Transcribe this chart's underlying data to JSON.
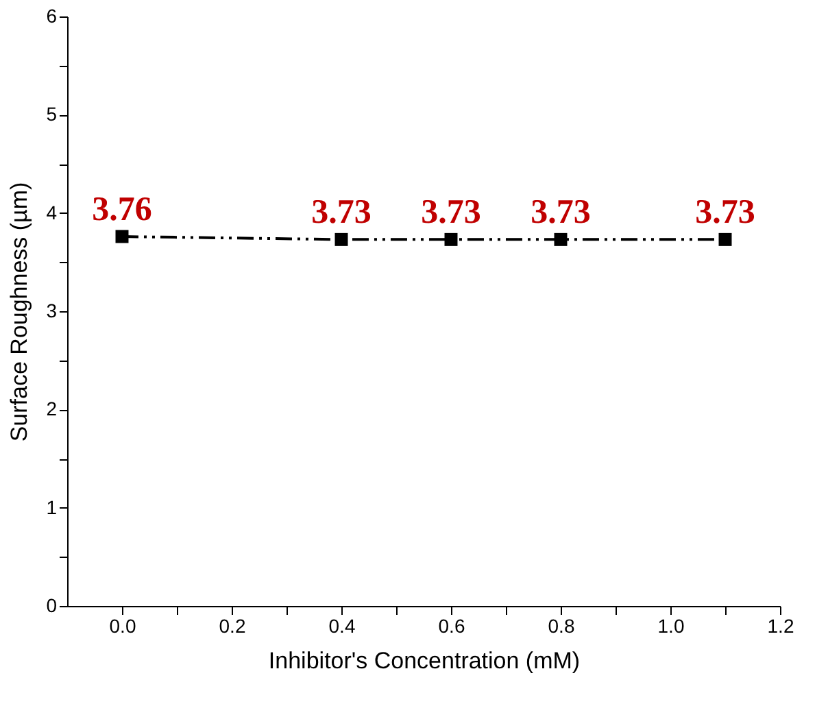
{
  "chart_data": {
    "type": "line",
    "xlabel": "Inhibitor's Concentration (mM)",
    "ylabel": "Surface Roughness (µm)",
    "x": [
      0.0,
      0.4,
      0.6,
      0.8,
      1.1
    ],
    "series": [
      {
        "color": "#000000",
        "values": [
          3.76,
          3.73,
          3.73,
          3.73,
          3.73
        ]
      }
    ],
    "xlim": [
      -0.1,
      1.2
    ],
    "xticks": [
      "0.0",
      0.2,
      0.4,
      0.6,
      0.8,
      "1.0",
      1.2,
      {
        "value": 0.1,
        "label": null
      },
      {
        "value": 0.3,
        "label": null
      },
      {
        "value": 0.5,
        "label": null
      },
      {
        "value": 0.7,
        "label": null
      },
      {
        "value": 0.9,
        "label": null
      },
      {
        "value": 1.1,
        "label": null
      }
    ],
    "ylim": [
      0,
      6
    ],
    "yticks": [
      0,
      1,
      2,
      3,
      4,
      5,
      6,
      {
        "value": 0.5,
        "label": null
      },
      {
        "value": 1.5,
        "label": null
      },
      {
        "value": 2.5,
        "label": null
      },
      {
        "value": 3.5,
        "label": null
      },
      {
        "value": 4.5,
        "label": null
      },
      {
        "value": 5.5,
        "label": null
      }
    ],
    "marker": "square",
    "line_style": "dashed",
    "data_labels": true,
    "grid": false
  }
}
